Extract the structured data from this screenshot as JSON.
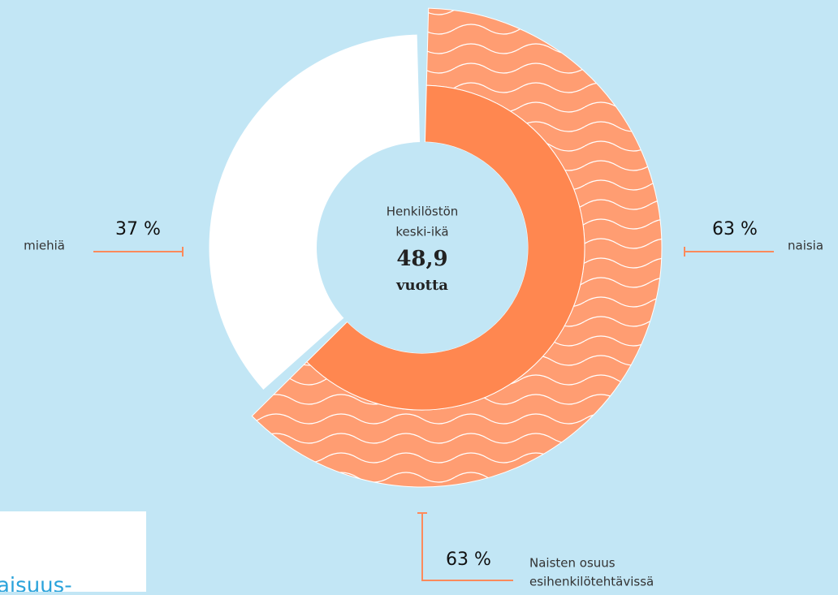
{
  "chart_data": {
    "type": "donut",
    "center_title": [
      "Henkilöstön",
      "keski-ikä"
    ],
    "center_value": "48,9",
    "center_unit": "vuotta",
    "outer": {
      "categories": [
        "naisia",
        "miehiä"
      ],
      "values": [
        63,
        37
      ],
      "value_labels": [
        "63 %",
        "37 %"
      ],
      "colors": [
        "#ff9d72",
        "#ffffff"
      ]
    },
    "inner": {
      "name": [
        "Naisten osuus",
        "esihenkilötehtävissä"
      ],
      "value": 63,
      "value_label": "63 %",
      "color": "#ff8750"
    },
    "side_fragment": "aisuus-"
  }
}
